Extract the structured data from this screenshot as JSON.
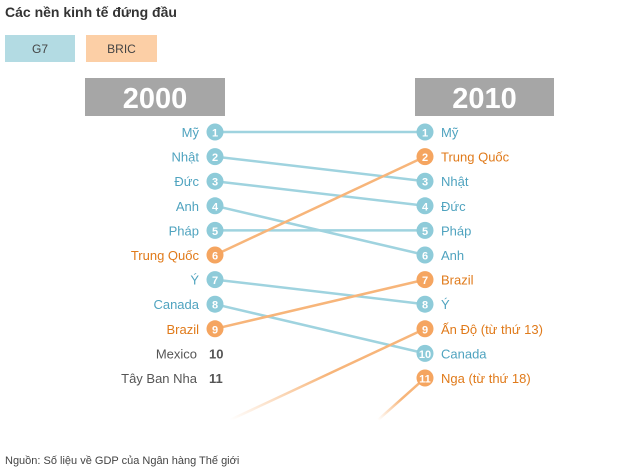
{
  "title": "Các nền kinh tế đứng đầu",
  "legend": [
    {
      "label": "G7",
      "color": "#b3dbe3"
    },
    {
      "label": "BRIC",
      "color": "#fccfa6"
    }
  ],
  "source": "Nguồn: Số liệu về GDP của Ngân hàng Thế giới",
  "colors": {
    "g7": "#8ecbd9",
    "g7_line": "#9fd3df",
    "bric": "#f5a560",
    "bric_line": "#f7b57a",
    "bric_text": "#e07a1a",
    "g7_text": "#4fa3bf",
    "other_text": "#555555",
    "header_bg": "#a6a6a6"
  },
  "chart_data": {
    "type": "slope-ranking",
    "columns": [
      "2000",
      "2010"
    ],
    "ranks_2000": [
      {
        "rank": 1,
        "country": "Mỹ",
        "group": "G7"
      },
      {
        "rank": 2,
        "country": "Nhật",
        "group": "G7"
      },
      {
        "rank": 3,
        "country": "Đức",
        "group": "G7"
      },
      {
        "rank": 4,
        "country": "Anh",
        "group": "G7"
      },
      {
        "rank": 5,
        "country": "Pháp",
        "group": "G7"
      },
      {
        "rank": 6,
        "country": "Trung Quốc",
        "group": "BRIC"
      },
      {
        "rank": 7,
        "country": "Ý",
        "group": "G7"
      },
      {
        "rank": 8,
        "country": "Canada",
        "group": "G7"
      },
      {
        "rank": 9,
        "country": "Brazil",
        "group": "BRIC"
      },
      {
        "rank": 10,
        "country": "Mexico",
        "group": "other"
      },
      {
        "rank": 11,
        "country": "Tây Ban Nha",
        "group": "other"
      }
    ],
    "ranks_2010": [
      {
        "rank": 1,
        "country": "Mỹ",
        "group": "G7"
      },
      {
        "rank": 2,
        "country": "Trung Quốc",
        "group": "BRIC"
      },
      {
        "rank": 3,
        "country": "Nhật",
        "group": "G7"
      },
      {
        "rank": 4,
        "country": "Đức",
        "group": "G7"
      },
      {
        "rank": 5,
        "country": "Pháp",
        "group": "G7"
      },
      {
        "rank": 6,
        "country": "Anh",
        "group": "G7"
      },
      {
        "rank": 7,
        "country": "Brazil",
        "group": "BRIC"
      },
      {
        "rank": 8,
        "country": "Ý",
        "group": "G7"
      },
      {
        "rank": 9,
        "country": "Ấn Độ (từ thứ 13)",
        "group": "BRIC"
      },
      {
        "rank": 10,
        "country": "Canada",
        "group": "G7"
      },
      {
        "rank": 11,
        "country": "Nga (từ thứ 18)",
        "group": "BRIC"
      }
    ],
    "movements": [
      {
        "from": 1,
        "to": 1,
        "group": "G7"
      },
      {
        "from": 2,
        "to": 3,
        "group": "G7"
      },
      {
        "from": 3,
        "to": 4,
        "group": "G7"
      },
      {
        "from": 4,
        "to": 6,
        "group": "G7"
      },
      {
        "from": 5,
        "to": 5,
        "group": "G7"
      },
      {
        "from": 6,
        "to": 2,
        "group": "BRIC"
      },
      {
        "from": 7,
        "to": 8,
        "group": "G7"
      },
      {
        "from": 8,
        "to": 10,
        "group": "G7"
      },
      {
        "from": 9,
        "to": 7,
        "group": "BRIC"
      },
      {
        "from": 13,
        "to": 9,
        "group": "BRIC"
      },
      {
        "from": 18,
        "to": 11,
        "group": "BRIC"
      }
    ]
  }
}
